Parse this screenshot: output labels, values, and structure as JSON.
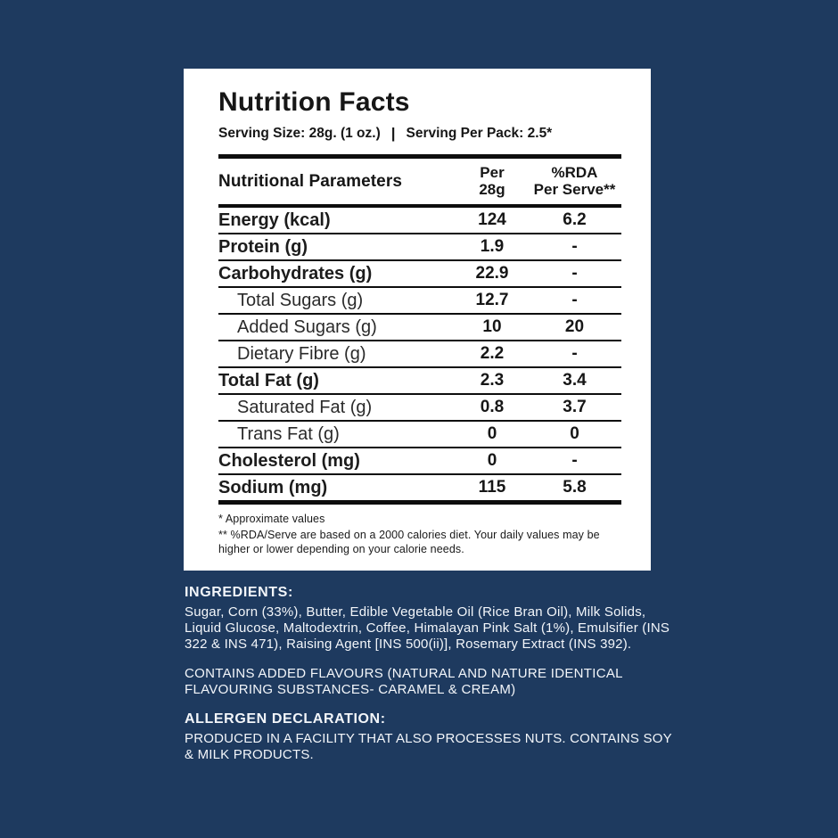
{
  "background_color": "#1e3a5f",
  "card": {
    "title": "Nutrition Facts",
    "serving_size": "Serving Size: 28g. (1 oz.)",
    "serving_separator": "|",
    "serving_per_pack": "Serving Per Pack: 2.5*",
    "table": {
      "header": {
        "parameters_label": "Nutritional Parameters",
        "per_col_line1": "Per",
        "per_col_line2": "28g",
        "rda_col_line1": "%RDA",
        "rda_col_line2": "Per Serve**"
      },
      "rows": [
        {
          "label": "Energy (kcal)",
          "per": "124",
          "rda": "6.2",
          "type": "main"
        },
        {
          "label": "Protein (g)",
          "per": "1.9",
          "rda": "-",
          "type": "main"
        },
        {
          "label": "Carbohydrates (g)",
          "per": "22.9",
          "rda": "-",
          "type": "main"
        },
        {
          "label": "Total Sugars (g)",
          "per": "12.7",
          "rda": "-",
          "type": "sub"
        },
        {
          "label": "Added Sugars (g)",
          "per": "10",
          "rda": "20",
          "type": "sub"
        },
        {
          "label": "Dietary Fibre (g)",
          "per": "2.2",
          "rda": "-",
          "type": "sub"
        },
        {
          "label": "Total Fat (g)",
          "per": "2.3",
          "rda": "3.4",
          "type": "main"
        },
        {
          "label": "Saturated Fat (g)",
          "per": "0.8",
          "rda": "3.7",
          "type": "sub"
        },
        {
          "label": "Trans Fat (g)",
          "per": "0",
          "rda": "0",
          "type": "sub"
        },
        {
          "label": "Cholesterol (mg)",
          "per": "0",
          "rda": "-",
          "type": "main"
        },
        {
          "label": "Sodium (mg)",
          "per": "115",
          "rda": "5.8",
          "type": "main"
        }
      ]
    },
    "footnotes": [
      "* Approximate values",
      "** %RDA/Serve are based on a 2000 calories diet. Your daily values may be higher or lower depending on your calorie needs."
    ]
  },
  "bottom": {
    "ingredients_heading": "INGREDIENTS:",
    "ingredients_text": "Sugar, Corn (33%), Butter, Edible Vegetable Oil (Rice Bran Oil), Milk Solids, Liquid Glucose, Maltodextrin, Coffee, Himalayan Pink Salt (1%), Emulsifier (INS 322 & INS 471), Raising Agent [INS 500(ii)], Rosemary Extract (INS 392).",
    "contains_text": "CONTAINS ADDED FLAVOURS (NATURAL AND NATURE IDENTICAL FLAVOURING SUBSTANCES- CARAMEL & CREAM)",
    "allergen_heading": "ALLERGEN DECLARATION:",
    "allergen_text": "PRODUCED IN A FACILITY THAT ALSO PROCESSES NUTS. CONTAINS SOY & MILK PRODUCTS."
  }
}
